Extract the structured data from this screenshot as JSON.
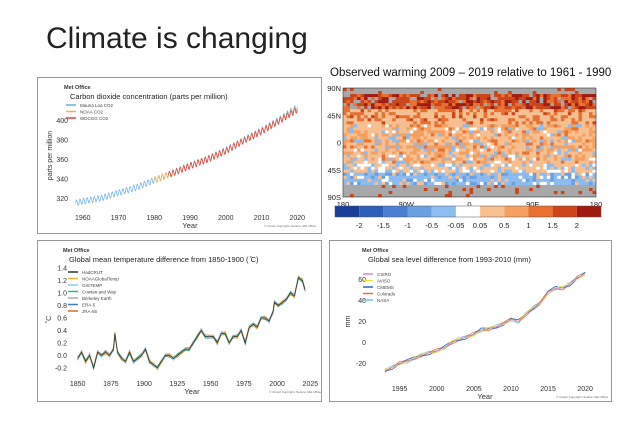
{
  "slide_title": "Climate is changing",
  "chart_data": [
    {
      "type": "line",
      "brand": "Met Office",
      "title": "Carbon dioxide concentration (parts per million)",
      "xlabel": "Year",
      "ylabel": "parts per million",
      "credit": "© Crown Copyright. Source: Met Office",
      "xticks": [
        1960,
        1970,
        1980,
        1990,
        2000,
        2010,
        2020
      ],
      "yticks": [
        320,
        340,
        360,
        380,
        400
      ],
      "xlim": [
        1957,
        2023
      ],
      "ylim": [
        310,
        418
      ],
      "seasonal_amplitude": 3,
      "series": [
        {
          "name": "Mauna Loa CO2",
          "color": "#6aaee0",
          "x": [
            1958,
            1960,
            1965,
            1970,
            1975,
            1980,
            1985,
            1990,
            1995,
            2000,
            2005,
            2010,
            2015,
            2020
          ],
          "values": [
            315,
            317,
            320,
            325.7,
            331,
            338.7,
            346,
            354,
            361,
            369.7,
            380,
            389.9,
            401,
            414
          ]
        },
        {
          "name": "NOAA CO2",
          "color": "#f0b040",
          "x": [
            1980,
            1985,
            1990,
            1995,
            2000,
            2005,
            2010,
            2015,
            2020
          ],
          "values": [
            338.5,
            345.5,
            353.5,
            360.5,
            369,
            379.5,
            389,
            400,
            412
          ]
        },
        {
          "name": "WDCGG CO2",
          "color": "#e04040",
          "x": [
            1984,
            1990,
            1995,
            2000,
            2005,
            2010,
            2015,
            2020
          ],
          "values": [
            344,
            353,
            360,
            368.5,
            379,
            388.5,
            399.5,
            411
          ]
        }
      ]
    },
    {
      "type": "line",
      "brand": "Met Office",
      "title": "Global mean temperature difference from 1850-1900 ( ̊C)",
      "xlabel": "Year",
      "ylabel": "˚C",
      "credit": "© Crown Copyright. Source: Met Office",
      "xticks": [
        1850,
        1875,
        1900,
        1925,
        1950,
        1975,
        2000,
        2025
      ],
      "yticks": [
        -0.2,
        0.0,
        0.2,
        0.4,
        0.6,
        0.8,
        1.0,
        1.2,
        1.4
      ],
      "xlim": [
        1845,
        2027
      ],
      "ylim": [
        -0.3,
        1.45
      ],
      "x": [
        1850,
        1853,
        1856,
        1859,
        1862,
        1865,
        1868,
        1871,
        1874,
        1877,
        1878,
        1880,
        1883,
        1886,
        1889,
        1892,
        1895,
        1898,
        1901,
        1904,
        1907,
        1910,
        1913,
        1916,
        1919,
        1922,
        1925,
        1928,
        1931,
        1934,
        1937,
        1940,
        1943,
        1946,
        1949,
        1952,
        1955,
        1958,
        1961,
        1964,
        1967,
        1970,
        1973,
        1976,
        1979,
        1982,
        1985,
        1988,
        1991,
        1994,
        1997,
        1998,
        2001,
        2004,
        2007,
        2010,
        2013,
        2016,
        2019,
        2021
      ],
      "series": [
        {
          "name": "HadCRUT",
          "color": "#333333",
          "values": [
            -0.05,
            0.05,
            -0.1,
            0.0,
            -0.2,
            0.05,
            0.0,
            0.05,
            0.0,
            0.1,
            0.35,
            0.05,
            -0.05,
            -0.1,
            0.05,
            -0.1,
            -0.05,
            0.0,
            0.1,
            -0.1,
            -0.15,
            -0.2,
            -0.1,
            0.0,
            0.0,
            -0.05,
            0.0,
            0.05,
            0.1,
            0.1,
            0.2,
            0.3,
            0.4,
            0.3,
            0.3,
            0.3,
            0.2,
            0.35,
            0.35,
            0.2,
            0.3,
            0.3,
            0.4,
            0.2,
            0.45,
            0.5,
            0.45,
            0.6,
            0.6,
            0.55,
            0.7,
            0.85,
            0.8,
            0.85,
            0.9,
            1.0,
            0.95,
            1.25,
            1.2,
            1.05
          ]
        },
        {
          "name": "NOAAGlobalTemp",
          "color": "#f0b040"
        },
        {
          "name": "GISTEMP",
          "color": "#8fcff0"
        },
        {
          "name": "Cowtan and Way",
          "color": "#3cb08a"
        },
        {
          "name": "Berkeley Earth",
          "color": "#aaaaaa"
        },
        {
          "name": "ERA-5",
          "color": "#3f7fc8"
        },
        {
          "name": "JRA-55",
          "color": "#e06a20"
        }
      ]
    },
    {
      "type": "line",
      "brand": "Met Office",
      "title": "Global sea level difference from 1993-2010 (mm)",
      "xlabel": "Year",
      "ylabel": "mm",
      "credit": "© Crown Copyright. Source: Met Office",
      "xticks": [
        1995,
        2000,
        2005,
        2010,
        2015,
        2020
      ],
      "yticks": [
        -20,
        0,
        20,
        40,
        60
      ],
      "xlim": [
        1991,
        2022
      ],
      "ylim": [
        -35,
        75
      ],
      "x": [
        1993,
        1994,
        1995,
        1996,
        1997,
        1998,
        1999,
        2000,
        2001,
        2002,
        2003,
        2004,
        2005,
        2006,
        2007,
        2008,
        2009,
        2010,
        2011,
        2012,
        2013,
        2014,
        2015,
        2016,
        2017,
        2018,
        2019,
        2020
      ],
      "series": [
        {
          "name": "CSIRO",
          "color": "#d88ac8",
          "values": [
            -27,
            -24,
            -20,
            -18,
            -15,
            -12,
            -10,
            -8,
            -5,
            0,
            3,
            5,
            8,
            12,
            13,
            15,
            18,
            22,
            20,
            27,
            33,
            38,
            48,
            52,
            52,
            56,
            62,
            66
          ]
        },
        {
          "name": "AVISO",
          "color": "#e8e040"
        },
        {
          "name": "CMEMS",
          "color": "#2a6ab0"
        },
        {
          "name": "Colorado",
          "color": "#e07830"
        },
        {
          "name": "NASA",
          "color": "#70c0e8"
        }
      ]
    },
    {
      "type": "heatmap",
      "title": "Observed warming 2009 – 2019 relative to 1961 - 1990",
      "yticks": [
        "90N",
        "45N",
        "0",
        "45S",
        "90S"
      ],
      "xticks": [
        "180",
        "90W",
        "0",
        "90E",
        "180"
      ],
      "colorbar": {
        "colors": [
          "#1a3f99",
          "#2c5fb8",
          "#4a7fd0",
          "#6a9fe0",
          "#8cbcf0",
          "#ffffff",
          "#f8c090",
          "#f5a060",
          "#ea7030",
          "#cc4418",
          "#a01a10"
        ],
        "labels": [
          "-2",
          "-1.5",
          "-1",
          "-0.5",
          "-0.05",
          "0.05",
          "0.5",
          "1",
          "1.5",
          "2"
        ]
      },
      "missing_color": "#a8a8a8"
    }
  ]
}
